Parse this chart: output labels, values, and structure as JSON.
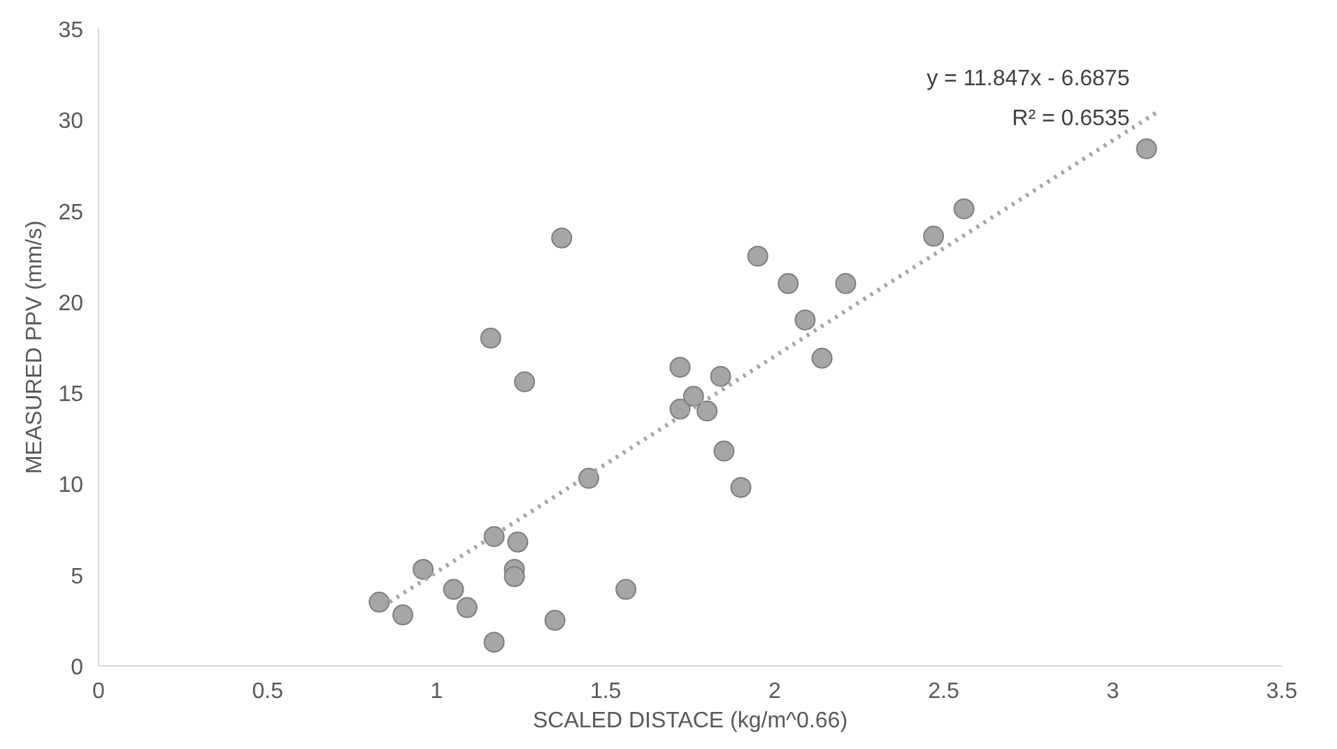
{
  "chart_data": {
    "type": "scatter",
    "xlabel": "SCALED DISTACE (kg/m^0.66)",
    "ylabel": "MEASURED PPV (mm/s)",
    "xlim": [
      0,
      3.5
    ],
    "xticks": [
      0,
      0.5,
      1,
      1.5,
      2,
      2.5,
      3,
      3.5
    ],
    "ylim": [
      0,
      35
    ],
    "yticks": [
      0,
      5,
      10,
      15,
      20,
      25,
      30,
      35
    ],
    "grid": false,
    "series": [
      {
        "color": "#a6a6a6",
        "marker": "circle",
        "x": [
          0.83,
          0.9,
          0.96,
          1.05,
          1.09,
          1.17,
          1.16,
          1.17,
          1.23,
          1.23,
          1.24,
          1.26,
          1.35,
          1.37,
          1.45,
          1.56,
          1.72,
          1.72,
          1.76,
          1.8,
          1.84,
          1.85,
          1.9,
          1.95,
          2.04,
          2.09,
          2.14,
          2.21,
          2.47,
          2.56,
          3.1
        ],
        "values": [
          3.5,
          2.8,
          5.3,
          4.2,
          3.2,
          1.3,
          18.0,
          7.1,
          5.3,
          4.9,
          6.8,
          15.6,
          2.5,
          23.5,
          10.3,
          4.2,
          14.1,
          16.4,
          14.8,
          14.0,
          15.9,
          11.8,
          9.8,
          22.5,
          21.0,
          19.0,
          16.9,
          21.0,
          23.6,
          25.1,
          28.4
        ]
      },
      {
        "type": "line",
        "color": "#a6a6a6",
        "line_style": "dotted",
        "x": [
          0.84,
          3.13
        ],
        "values": [
          3.26,
          30.4
        ]
      }
    ],
    "annotations": [
      "y = 11.847x - 6.6875",
      "R² = 0.6535"
    ]
  }
}
